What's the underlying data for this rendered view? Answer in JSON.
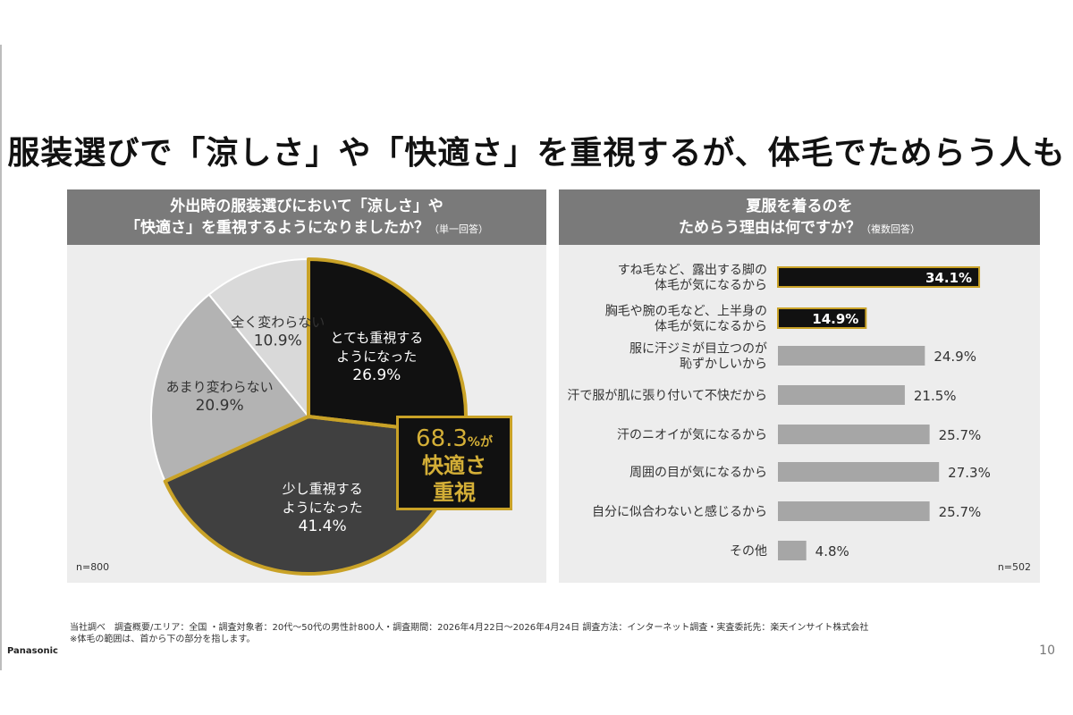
{
  "title": "服装選びで「涼しさ」や「快適さ」を重視するが、体毛でためらう人も",
  "left_panel": {
    "header_line1": "外出時の服装選びにおいて「涼しさ」や",
    "header_line2": "「快適さ」を重視するようになりましたか？",
    "header_note": "（単一回答）",
    "n": "n=800",
    "highlight": {
      "pct": "68.3",
      "pct_suffix": "%が",
      "line1": "快適さ",
      "line2": "重視"
    }
  },
  "right_panel": {
    "header_line1": "夏服を着るのを",
    "header_line2": "ためらう理由は何ですか？",
    "header_note": "（複数回答）",
    "n": "n=502"
  },
  "chart_data": [
    {
      "type": "pie",
      "slices": [
        {
          "label": [
            "とても重視する",
            "ようになった"
          ],
          "value": 26.9,
          "value_label": "26.9%",
          "color": "#111111",
          "text_color": "#ffffff",
          "highlighted": true
        },
        {
          "label": [
            "少し重視する",
            "ようになった"
          ],
          "value": 41.4,
          "value_label": "41.4%",
          "color": "#404040",
          "text_color": "#ffffff",
          "highlighted": true
        },
        {
          "label": [
            "あまり変わらない"
          ],
          "value": 20.9,
          "value_label": "20.9%",
          "color": "#b3b3b3",
          "text_color": "#333333",
          "highlighted": false
        },
        {
          "label": [
            "全く変わらない"
          ],
          "value": 10.9,
          "value_label": "10.9%",
          "color": "#d9d9d9",
          "text_color": "#333333",
          "highlighted": false
        }
      ],
      "highlight_color": "#c9a227"
    },
    {
      "type": "bar",
      "orientation": "horizontal",
      "categories": [
        [
          "すね毛など、露出する脚の",
          "体毛が気になるから"
        ],
        [
          "胸毛や腕の毛など、上半身の",
          "体毛が気になるから"
        ],
        [
          "服に汗ジミが目立つのが",
          "恥ずかしいから"
        ],
        [
          "汗で服が肌に張り付いて不快だから"
        ],
        [
          "汗のニオイが気になるから"
        ],
        [
          "周囲の目が気になるから"
        ],
        [
          "自分に似合わないと感じるから"
        ],
        [
          "その他"
        ]
      ],
      "values": [
        34.1,
        14.9,
        24.9,
        21.5,
        25.7,
        27.3,
        25.7,
        4.8
      ],
      "value_labels": [
        "34.1%",
        "14.9%",
        "24.9%",
        "21.5%",
        "25.7%",
        "27.3%",
        "25.7%",
        "4.8%"
      ],
      "highlighted": [
        true,
        true,
        false,
        false,
        false,
        false,
        false,
        false
      ],
      "colors": {
        "highlight": "#111111",
        "normal": "#a6a6a6",
        "border": "#c9a227"
      }
    }
  ],
  "footnote_line1": "当社調べ　調査概要/エリア：全国 ・調査対象者：20代～50代の男性計800人・調査期間：2026年4月22日～2026年4月24日 調査方法：インターネット調査・実査委託先：楽天インサイト株式会社",
  "footnote_line2": "※体毛の範囲は、首から下の部分を指します。",
  "brand": "Panasonic",
  "page_number": "10"
}
